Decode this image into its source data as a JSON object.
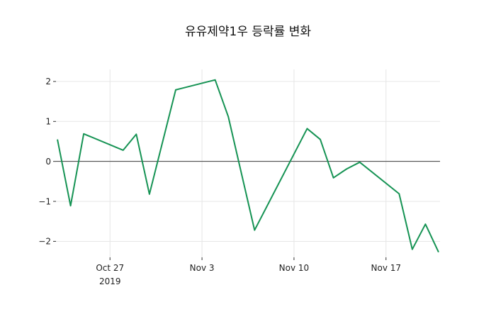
{
  "chart_data": {
    "type": "line",
    "title": "유유제약1우 등락률 변화",
    "xlabel": "",
    "ylabel": "",
    "legend": "none",
    "grid": true,
    "grid_color": "#e6e6e6",
    "zero_line": true,
    "zero_line_color": "#3d3d3d",
    "tick_color": "#333333",
    "text_color": "#1f1f1f",
    "background_color": "#ffffff",
    "xlim_days": [
      -0.11,
      29.11
    ],
    "ylim": [
      -2.4,
      2.3
    ],
    "series": [
      {
        "name": "등락률",
        "color": "#169354",
        "dates": [
          "Oct 23",
          "Oct 24",
          "Oct 25",
          "Oct 28",
          "Oct 29",
          "Oct 30",
          "Nov 1",
          "Nov 4",
          "Nov 5",
          "Nov 7",
          "Nov 11",
          "Nov 12",
          "Nov 13",
          "Nov 14",
          "Nov 15",
          "Nov 18",
          "Nov 19",
          "Nov 20",
          "Nov 21"
        ],
        "day_offsets": [
          0,
          1,
          2,
          5,
          6,
          7,
          9,
          12,
          13,
          15,
          19,
          20,
          21,
          22,
          23,
          26,
          27,
          28,
          29
        ],
        "values": [
          0.55,
          -1.11,
          0.69,
          0.28,
          0.68,
          -0.82,
          1.79,
          2.04,
          1.12,
          -1.72,
          0.82,
          0.55,
          -0.41,
          -0.19,
          -0.02,
          -0.81,
          -2.2,
          -1.57,
          -2.27
        ]
      }
    ],
    "xticks": [
      {
        "label": "Oct 27",
        "sublabel": "2019",
        "day": 4
      },
      {
        "label": "Nov 3",
        "sublabel": "",
        "day": 11
      },
      {
        "label": "Nov 10",
        "sublabel": "",
        "day": 18
      },
      {
        "label": "Nov 17",
        "sublabel": "",
        "day": 25
      }
    ],
    "yticks": [
      {
        "label": "2",
        "value": 2
      },
      {
        "label": "1",
        "value": 1
      },
      {
        "label": "0",
        "value": 0
      },
      {
        "label": "−1",
        "value": -1
      },
      {
        "label": "−2",
        "value": -2
      }
    ]
  }
}
